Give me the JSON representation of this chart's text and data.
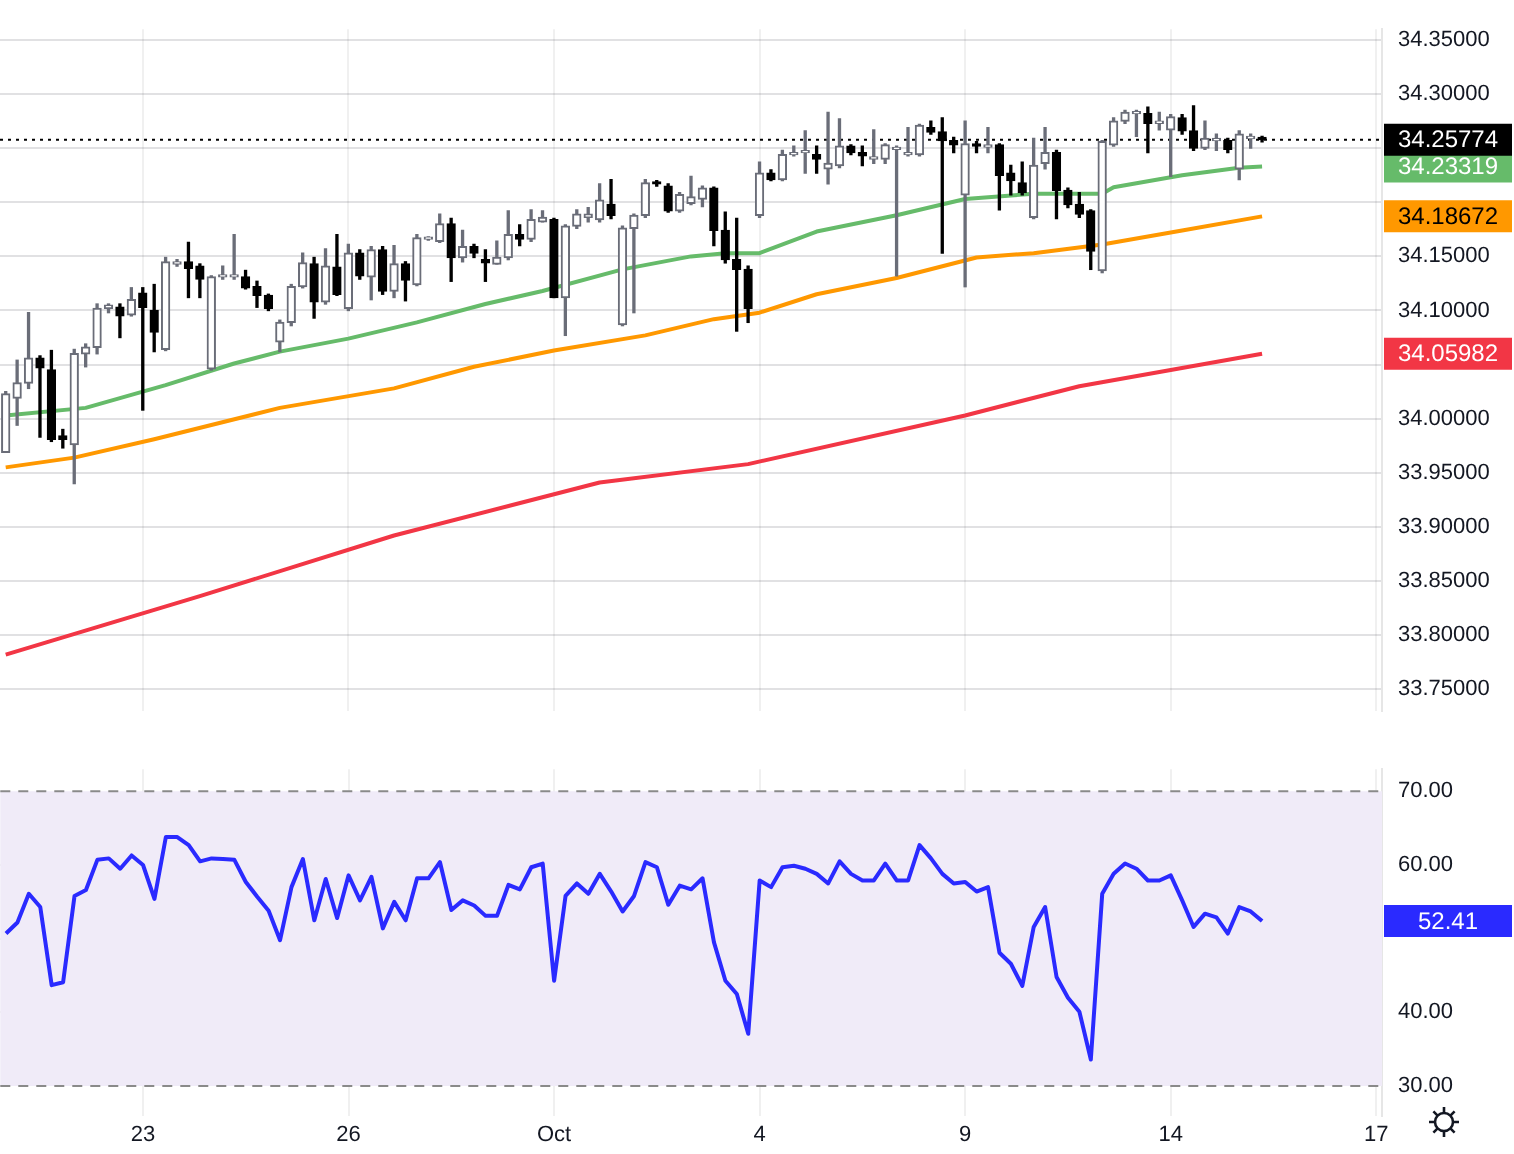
{
  "chart_data": [
    {
      "type": "candlestick",
      "categories": [
        null,
        null,
        null,
        null,
        null,
        null,
        null,
        null,
        null,
        null,
        null,
        null,
        null,
        null,
        null,
        null,
        null,
        null,
        null,
        null,
        null,
        null,
        null,
        null,
        null,
        null,
        null,
        null,
        null,
        null,
        null,
        null,
        null,
        null,
        null,
        null,
        null,
        null,
        null,
        null,
        null,
        null,
        null,
        null,
        null,
        null,
        null,
        null,
        null,
        null,
        null,
        null,
        null,
        null,
        null,
        null,
        null,
        null,
        null,
        null,
        null,
        null,
        null,
        null,
        null,
        null,
        null,
        null,
        null,
        null,
        null,
        null,
        null,
        null,
        null,
        null,
        null,
        null,
        null,
        null,
        null,
        null,
        null,
        null,
        null,
        null,
        null,
        null,
        null,
        null,
        null,
        null,
        null,
        null,
        null,
        null,
        null,
        null,
        null,
        null,
        null,
        null,
        null,
        null,
        null,
        null,
        null,
        null,
        null,
        null,
        null,
        null,
        null,
        null,
        null,
        null,
        null,
        null,
        null,
        null,
        null
      ],
      "ohlc": [
        [
          33.969,
          34.025,
          33.969,
          34.023
        ],
        [
          34.019,
          34.054,
          33.994,
          34.033
        ],
        [
          34.033,
          34.098,
          34.028,
          34.056
        ],
        [
          34.056,
          34.058,
          33.983,
          34.047
        ],
        [
          34.045,
          34.063,
          33.979,
          33.981
        ],
        [
          33.984,
          33.99,
          33.973,
          33.981
        ],
        [
          33.976,
          34.064,
          33.94,
          34.06
        ],
        [
          34.06,
          34.069,
          34.048,
          34.066
        ],
        [
          34.066,
          34.106,
          34.06,
          34.102
        ],
        [
          34.102,
          34.106,
          34.098,
          34.105
        ],
        [
          34.103,
          34.106,
          34.075,
          34.095
        ],
        [
          34.096,
          34.121,
          34.095,
          34.11
        ],
        [
          34.116,
          34.121,
          34.008,
          34.103
        ],
        [
          34.1,
          34.124,
          34.062,
          34.08
        ],
        [
          34.064,
          34.149,
          34.063,
          34.145
        ],
        [
          34.143,
          34.147,
          34.141,
          34.145
        ],
        [
          34.145,
          34.163,
          34.112,
          34.139
        ],
        [
          34.141,
          34.143,
          34.112,
          34.129
        ],
        [
          34.046,
          34.132,
          34.045,
          34.131
        ],
        [
          34.131,
          34.141,
          34.129,
          34.132
        ],
        [
          34.131,
          34.17,
          34.129,
          34.131
        ],
        [
          34.131,
          34.137,
          34.12,
          34.121
        ],
        [
          34.122,
          34.127,
          34.103,
          34.114
        ],
        [
          34.114,
          34.115,
          34.1,
          34.102
        ],
        [
          34.071,
          34.091,
          34.062,
          34.089
        ],
        [
          34.089,
          34.124,
          34.086,
          34.122
        ],
        [
          34.122,
          34.153,
          34.121,
          34.144
        ],
        [
          34.143,
          34.149,
          34.093,
          34.108
        ],
        [
          34.108,
          34.157,
          34.106,
          34.141
        ],
        [
          34.14,
          34.17,
          34.114,
          34.115
        ],
        [
          34.102,
          34.161,
          34.1,
          34.153
        ],
        [
          34.153,
          34.156,
          34.129,
          34.132
        ],
        [
          34.131,
          34.159,
          34.11,
          34.156
        ],
        [
          34.156,
          34.159,
          34.115,
          34.118
        ],
        [
          34.118,
          34.16,
          34.112,
          34.143
        ],
        [
          34.143,
          34.145,
          34.109,
          34.128
        ],
        [
          34.124,
          34.17,
          34.123,
          34.167
        ],
        [
          34.166,
          34.168,
          34.165,
          34.167
        ],
        [
          34.164,
          34.189,
          34.163,
          34.18
        ],
        [
          34.18,
          34.185,
          34.127,
          34.149
        ],
        [
          34.149,
          34.174,
          34.145,
          34.159
        ],
        [
          34.159,
          34.161,
          34.149,
          34.153
        ],
        [
          34.147,
          34.156,
          34.127,
          34.144
        ],
        [
          34.143,
          34.164,
          34.143,
          34.149
        ],
        [
          34.149,
          34.192,
          34.147,
          34.17
        ],
        [
          34.17,
          34.179,
          34.16,
          34.166
        ],
        [
          34.166,
          34.193,
          34.164,
          34.184
        ],
        [
          34.182,
          34.192,
          34.182,
          34.186
        ],
        [
          34.184,
          34.185,
          34.112,
          34.112
        ],
        [
          34.112,
          34.179,
          34.077,
          34.178
        ],
        [
          34.178,
          34.193,
          34.176,
          34.189
        ],
        [
          34.186,
          34.195,
          34.182,
          34.189
        ],
        [
          34.184,
          34.217,
          34.182,
          34.202
        ],
        [
          34.198,
          34.221,
          34.185,
          34.188
        ],
        [
          34.087,
          34.178,
          34.086,
          34.176
        ],
        [
          34.176,
          34.189,
          34.098,
          34.188
        ],
        [
          34.188,
          34.221,
          34.186,
          34.218
        ],
        [
          34.218,
          34.22,
          34.215,
          34.217
        ],
        [
          34.215,
          34.217,
          34.191,
          34.192
        ],
        [
          34.192,
          34.209,
          34.191,
          34.207
        ],
        [
          34.199,
          34.224,
          34.198,
          34.205
        ],
        [
          34.203,
          34.215,
          34.196,
          34.213
        ],
        [
          34.213,
          34.214,
          34.16,
          34.174
        ],
        [
          34.174,
          34.191,
          34.144,
          34.147
        ],
        [
          34.147,
          34.185,
          34.081,
          34.138
        ],
        [
          34.138,
          34.141,
          34.089,
          34.102
        ],
        [
          34.188,
          34.237,
          34.186,
          34.227
        ],
        [
          34.227,
          34.23,
          34.22,
          34.221
        ],
        [
          34.221,
          34.248,
          34.22,
          34.244
        ],
        [
          34.244,
          34.252,
          34.243,
          34.246
        ],
        [
          34.246,
          34.266,
          34.227,
          34.246
        ],
        [
          34.244,
          34.252,
          34.227,
          34.24
        ],
        [
          34.231,
          34.283,
          34.217,
          34.236
        ],
        [
          34.234,
          34.277,
          34.232,
          34.252
        ],
        [
          34.252,
          34.253,
          34.244,
          34.246
        ],
        [
          34.246,
          34.252,
          34.234,
          34.243
        ],
        [
          34.24,
          34.267,
          34.236,
          34.242
        ],
        [
          34.24,
          34.254,
          34.236,
          34.253
        ],
        [
          34.249,
          34.252,
          34.132,
          34.25
        ],
        [
          34.244,
          34.269,
          34.243,
          34.246
        ],
        [
          34.244,
          34.272,
          34.243,
          34.271
        ],
        [
          34.269,
          34.275,
          34.263,
          34.265
        ],
        [
          34.265,
          34.278,
          34.153,
          34.257
        ],
        [
          34.257,
          34.26,
          34.246,
          34.253
        ],
        [
          34.207,
          34.275,
          34.122,
          34.254
        ],
        [
          34.254,
          34.256,
          34.246,
          34.252
        ],
        [
          34.251,
          34.269,
          34.246,
          34.253
        ],
        [
          34.253,
          34.254,
          34.193,
          34.225
        ],
        [
          34.227,
          34.234,
          34.207,
          34.22
        ],
        [
          34.218,
          34.237,
          34.207,
          34.209
        ],
        [
          34.186,
          34.259,
          34.185,
          34.234
        ],
        [
          34.236,
          34.269,
          34.231,
          34.246
        ],
        [
          34.246,
          34.248,
          34.185,
          34.211
        ],
        [
          34.211,
          34.213,
          34.195,
          34.198
        ],
        [
          34.198,
          34.209,
          34.186,
          34.189
        ],
        [
          34.192,
          34.193,
          34.138,
          34.155
        ],
        [
          34.137,
          34.257,
          34.135,
          34.256
        ],
        [
          34.253,
          34.278,
          34.252,
          34.275
        ],
        [
          34.275,
          34.285,
          34.273,
          34.283
        ],
        [
          34.282,
          34.285,
          34.261,
          34.283
        ],
        [
          34.282,
          34.288,
          34.246,
          34.273
        ],
        [
          34.273,
          34.283,
          34.267,
          34.275
        ],
        [
          34.267,
          34.281,
          34.224,
          34.279
        ],
        [
          34.278,
          34.281,
          34.263,
          34.266
        ],
        [
          34.266,
          34.289,
          34.248,
          34.25
        ],
        [
          34.25,
          34.275,
          34.249,
          34.259
        ],
        [
          34.257,
          34.263,
          34.248,
          34.259
        ],
        [
          34.257,
          34.259,
          34.246,
          34.249
        ],
        [
          34.231,
          34.266,
          34.221,
          34.263
        ],
        [
          34.259,
          34.263,
          34.25,
          34.259
        ],
        [
          34.26,
          34.261,
          34.256,
          34.258
        ],
        null,
        null,
        null,
        null,
        null,
        null,
        null,
        null,
        null,
        null
      ],
      "series": [
        {
          "type": "line",
          "color": "#66bb6a",
          "values": [
            34.003,
            null,
            null,
            null,
            null,
            null,
            null,
            34.01,
            null,
            null,
            null,
            null,
            34.025,
            null,
            34.031,
            null,
            null,
            null,
            null,
            null,
            34.051,
            null,
            null,
            null,
            34.062,
            null,
            null,
            null,
            null,
            null,
            34.074,
            null,
            null,
            null,
            null,
            null,
            34.089,
            null,
            null,
            null,
            null,
            null,
            34.106,
            null,
            null,
            null,
            null,
            34.118,
            null,
            null,
            null,
            null,
            null,
            null,
            34.138,
            null,
            null,
            null,
            null,
            null,
            34.15,
            null,
            null,
            34.153,
            null,
            null,
            34.153,
            null,
            null,
            null,
            null,
            34.173,
            null,
            null,
            null,
            null,
            null,
            null,
            34.188,
            null,
            null,
            null,
            null,
            null,
            34.203,
            null,
            null,
            null,
            null,
            null,
            34.208,
            null,
            null,
            null,
            null,
            null,
            34.208,
            34.214,
            null,
            null,
            null,
            null,
            null,
            34.225,
            null,
            null,
            null,
            null,
            34.232,
            null,
            34.233,
            null,
            null,
            null,
            null,
            null,
            null,
            null,
            null,
            null,
            null
          ]
        },
        {
          "type": "line",
          "color": "#ff9800",
          "values": [
            33.955,
            null,
            null,
            null,
            null,
            null,
            33.964,
            null,
            null,
            null,
            null,
            null,
            null,
            33.981,
            null,
            null,
            null,
            null,
            null,
            null,
            null,
            null,
            null,
            null,
            34.01,
            null,
            null,
            null,
            null,
            null,
            null,
            null,
            null,
            null,
            34.028,
            null,
            null,
            null,
            null,
            null,
            null,
            34.048,
            null,
            null,
            null,
            null,
            null,
            null,
            34.063,
            null,
            null,
            null,
            null,
            null,
            null,
            null,
            34.077,
            null,
            null,
            null,
            null,
            null,
            34.092,
            null,
            null,
            null,
            34.098,
            null,
            null,
            null,
            null,
            34.115,
            null,
            null,
            null,
            null,
            null,
            null,
            34.13,
            null,
            null,
            null,
            null,
            null,
            null,
            34.149,
            null,
            null,
            null,
            null,
            34.153,
            null,
            null,
            null,
            null,
            null,
            34.161,
            null,
            null,
            null,
            null,
            null,
            null,
            34.174,
            null,
            null,
            null,
            null,
            null,
            null,
            34.187,
            null,
            null,
            null,
            null,
            null,
            null,
            null,
            null,
            null,
            null
          ]
        },
        {
          "type": "line",
          "color": "#f23645",
          "values": [
            33.782,
            null,
            null,
            null,
            null,
            null,
            null,
            null,
            null,
            null,
            null,
            null,
            null,
            null,
            null,
            null,
            null,
            33.836,
            null,
            null,
            null,
            null,
            null,
            null,
            null,
            null,
            null,
            null,
            null,
            null,
            null,
            null,
            null,
            null,
            33.892,
            null,
            null,
            null,
            null,
            null,
            null,
            null,
            null,
            null,
            null,
            null,
            null,
            null,
            null,
            null,
            null,
            null,
            33.941,
            null,
            null,
            null,
            null,
            null,
            null,
            null,
            null,
            null,
            null,
            null,
            null,
            33.958,
            null,
            null,
            null,
            null,
            null,
            null,
            null,
            null,
            null,
            null,
            null,
            null,
            null,
            null,
            null,
            null,
            null,
            null,
            34.003,
            null,
            null,
            null,
            null,
            null,
            null,
            null,
            null,
            null,
            34.03,
            null,
            null,
            null,
            null,
            null,
            null,
            null,
            null,
            null,
            null,
            null,
            null,
            null,
            null,
            null,
            34.06,
            null,
            null,
            null,
            null,
            null,
            null,
            null,
            null,
            null,
            null
          ]
        }
      ],
      "ylim": [
        33.73,
        34.36
      ],
      "yticks": [
        {
          "value": 33.75,
          "label": "33.75000"
        },
        {
          "value": 33.8,
          "label": "33.80000"
        },
        {
          "value": 33.85,
          "label": "33.85000"
        },
        {
          "value": 33.9,
          "label": "33.90000"
        },
        {
          "value": 33.95,
          "label": "33.95000"
        },
        {
          "value": 34,
          "label": "34.00000"
        },
        {
          "value": 34.05,
          "label": null
        },
        {
          "value": 34.1,
          "label": "34.10000"
        },
        {
          "value": 34.15,
          "label": "34.15000"
        },
        {
          "value": 34.2,
          "label": null
        },
        {
          "value": 34.25,
          "label": null
        },
        {
          "value": 34.3,
          "label": "34.30000"
        },
        {
          "value": 34.35,
          "label": "34.35000"
        }
      ],
      "ref_lines": [
        {
          "axis": "y",
          "value": 34.25774,
          "label": "34.25774",
          "color": "#000000",
          "line_style": "dotted"
        }
      ],
      "annotations": [
        "34.23319",
        "34.18672",
        "34.05982"
      ],
      "grid": true,
      "tick_labels": "y"
    },
    {
      "type": "line",
      "categories": [
        null,
        null,
        null,
        null,
        null,
        null,
        null,
        null,
        null,
        null,
        null,
        null,
        "23",
        null,
        null,
        null,
        null,
        null,
        null,
        null,
        null,
        null,
        null,
        null,
        null,
        null,
        null,
        null,
        null,
        null,
        "26",
        null,
        null,
        null,
        null,
        null,
        null,
        null,
        null,
        null,
        null,
        null,
        null,
        null,
        null,
        null,
        null,
        null,
        "Oct",
        null,
        null,
        null,
        null,
        null,
        null,
        null,
        null,
        null,
        null,
        null,
        null,
        null,
        null,
        null,
        null,
        null,
        "4",
        null,
        null,
        null,
        null,
        null,
        null,
        null,
        null,
        null,
        null,
        null,
        null,
        null,
        null,
        null,
        null,
        null,
        "9",
        null,
        null,
        null,
        null,
        null,
        null,
        null,
        null,
        null,
        null,
        null,
        null,
        null,
        null,
        null,
        null,
        null,
        "14",
        null,
        null,
        null,
        null,
        null,
        null,
        null,
        null,
        null,
        null,
        null,
        null,
        null,
        null,
        null,
        null,
        null,
        "17"
      ],
      "series": [
        {
          "color": "#2a2aff",
          "values": [
            50.7,
            52.2,
            56.1,
            54.3,
            43.7,
            44.1,
            55.8,
            56.6,
            60.7,
            60.9,
            59.5,
            61.3,
            60.0,
            55.4,
            63.8,
            63.8,
            62.7,
            60.5,
            60.9,
            60.8,
            60.7,
            57.7,
            55.7,
            53.8,
            49.8,
            57.0,
            60.8,
            52.5,
            58.1,
            52.8,
            58.6,
            55.2,
            58.4,
            51.4,
            55.0,
            52.5,
            58.2,
            58.2,
            60.4,
            53.9,
            55.2,
            54.5,
            53.1,
            53.1,
            57.3,
            56.7,
            59.7,
            60.2,
            44.3,
            55.8,
            57.5,
            56.1,
            58.8,
            56.4,
            53.7,
            55.8,
            60.4,
            59.7,
            54.6,
            57.2,
            56.7,
            58.2,
            49.5,
            44.3,
            42.5,
            37.1,
            57.9,
            57.0,
            59.7,
            59.9,
            59.5,
            58.8,
            57.5,
            60.5,
            58.8,
            57.9,
            57.9,
            60.2,
            57.9,
            57.9,
            62.7,
            60.9,
            58.8,
            57.5,
            57.7,
            56.4,
            57.0,
            48.1,
            46.6,
            43.6,
            51.6,
            54.3,
            44.8,
            42.0,
            40.1,
            33.6,
            56.1,
            58.8,
            60.2,
            59.5,
            57.9,
            57.9,
            58.6,
            55.2,
            51.6,
            53.4,
            52.9,
            50.7,
            54.3,
            53.7,
            52.4,
            null,
            null,
            null,
            null,
            null,
            null,
            null,
            null,
            null,
            null
          ]
        }
      ],
      "ylim": [
        26,
        73
      ],
      "yticks": [
        {
          "value": 30,
          "label": "30.00"
        },
        {
          "value": 40,
          "label": "40.00"
        },
        {
          "value": 50,
          "label": null
        },
        {
          "value": 60,
          "label": "60.00"
        },
        {
          "value": 70,
          "label": "70.00"
        }
      ],
      "bands": [
        {
          "axis": "y",
          "from": 30,
          "to": 70,
          "color": "#f0ebf8"
        }
      ],
      "annotations": [
        "52.41"
      ],
      "grid": true
    }
  ]
}
